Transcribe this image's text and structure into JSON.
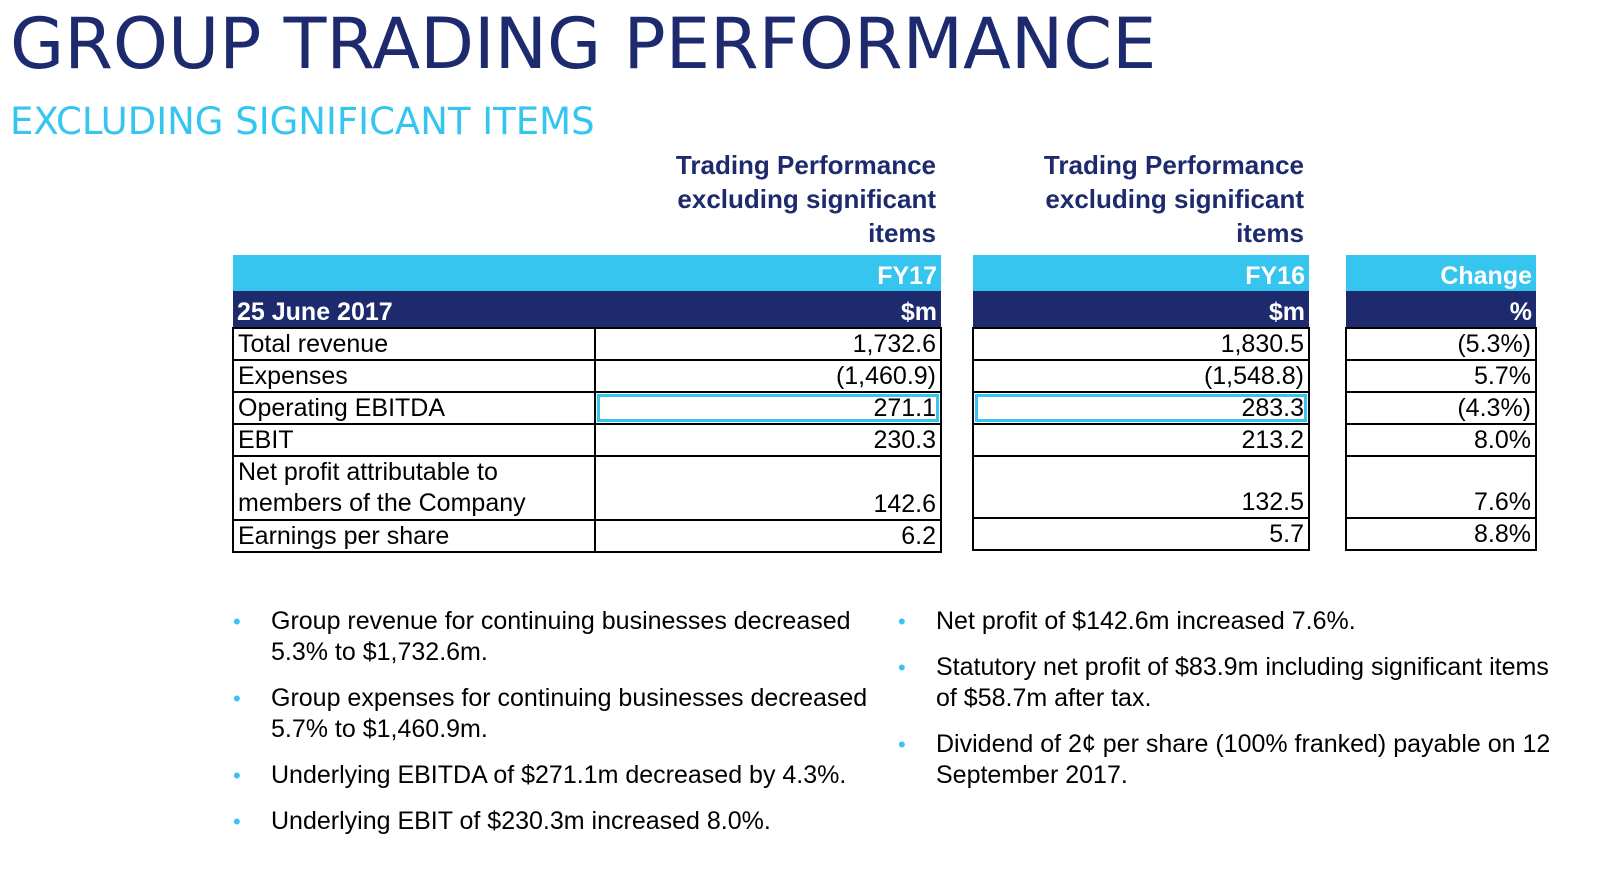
{
  "title": "GROUP TRADING PERFORMANCE",
  "subtitle": "EXCLUDING SIGNIFICANT ITEMS",
  "column_headings": {
    "fy17": "Trading Performance excluding significant items",
    "fy16": "Trading Performance excluding significant items"
  },
  "table": {
    "header": {
      "fy17": "FY17",
      "fy16": "FY16",
      "change": "Change",
      "period": "25 June 2017",
      "unit_fy17": "$m",
      "unit_fy16": "$m",
      "unit_change": "%"
    },
    "rows": [
      {
        "label": "Total revenue",
        "fy17": "1,732.6",
        "fy16": "1,830.5",
        "change": "(5.3%)"
      },
      {
        "label": "Expenses",
        "fy17": "(1,460.9)",
        "fy16": "(1,548.8)",
        "change": "5.7%"
      },
      {
        "label": "Operating EBITDA",
        "fy17": "271.1",
        "fy16": "283.3",
        "change": "(4.3%)"
      },
      {
        "label": "EBIT",
        "fy17": "230.3",
        "fy16": "213.2",
        "change": "8.0%"
      },
      {
        "label": "Net profit attributable to members of the Company",
        "fy17": "142.6",
        "fy16": "132.5",
        "change": "7.6%"
      },
      {
        "label": "Earnings per share",
        "fy17": "6.2",
        "fy16": "5.7",
        "change": "8.8%"
      }
    ]
  },
  "bullets_left": [
    "Group revenue for continuing businesses decreased 5.3% to $1,732.6m.",
    "Group expenses for continuing businesses decreased 5.7% to $1,460.9m.",
    "Underlying EBITDA of $271.1m  decreased by 4.3%.",
    "Underlying EBIT of $230.3m  increased 8.0%."
  ],
  "bullets_right": [
    "Net profit of $142.6m increased 7.6%.",
    "Statutory net profit of $83.9m including significant items of $58.7m after tax.",
    "Dividend of 2¢ per share (100% franked) payable on 12 September 2017."
  ],
  "bullet_glyph": "•",
  "colors": {
    "navy": "#1e2a6e",
    "cyan": "#35c5ef"
  }
}
